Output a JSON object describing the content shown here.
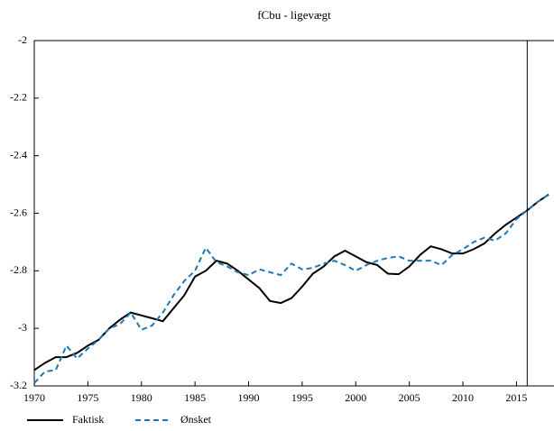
{
  "chart_data": {
    "type": "line",
    "title": "fCbu - ligevægt",
    "x": [
      1970,
      1971,
      1972,
      1973,
      1974,
      1975,
      1976,
      1977,
      1978,
      1979,
      1980,
      1981,
      1982,
      1983,
      1984,
      1985,
      1986,
      1987,
      1988,
      1989,
      1990,
      1991,
      1992,
      1993,
      1994,
      1995,
      1996,
      1997,
      1998,
      1999,
      2000,
      2001,
      2002,
      2003,
      2004,
      2005,
      2006,
      2007,
      2008,
      2009,
      2010,
      2011,
      2012,
      2013,
      2014,
      2015,
      2016,
      2017,
      2018
    ],
    "series": [
      {
        "name": "Faktisk",
        "color": "#000000",
        "dash": false,
        "values": [
          -3.145,
          -3.12,
          -3.1,
          -3.1,
          -3.085,
          -3.06,
          -3.04,
          -3.0,
          -2.97,
          -2.945,
          -2.955,
          -2.965,
          -2.975,
          -2.93,
          -2.885,
          -2.82,
          -2.8,
          -2.765,
          -2.775,
          -2.8,
          -2.83,
          -2.86,
          -2.905,
          -2.912,
          -2.895,
          -2.855,
          -2.81,
          -2.785,
          -2.75,
          -2.73,
          -2.75,
          -2.77,
          -2.78,
          -2.81,
          -2.812,
          -2.785,
          -2.745,
          -2.715,
          -2.725,
          -2.74,
          -2.74,
          -2.725,
          -2.705,
          -2.67,
          -2.64,
          -2.615,
          -2.59,
          -2.56,
          -2.535
        ]
      },
      {
        "name": "Ønsket",
        "color": "#1f77b4",
        "dash": true,
        "values": [
          -3.19,
          -3.15,
          -3.145,
          -3.06,
          -3.105,
          -3.07,
          -3.04,
          -3.0,
          -2.985,
          -2.945,
          -3.005,
          -2.99,
          -2.945,
          -2.885,
          -2.835,
          -2.8,
          -2.72,
          -2.77,
          -2.785,
          -2.805,
          -2.815,
          -2.795,
          -2.805,
          -2.815,
          -2.775,
          -2.795,
          -2.79,
          -2.775,
          -2.765,
          -2.78,
          -2.8,
          -2.78,
          -2.765,
          -2.755,
          -2.75,
          -2.765,
          -2.765,
          -2.765,
          -2.78,
          -2.745,
          -2.725,
          -2.7,
          -2.685,
          -2.695,
          -2.67,
          -2.62,
          -2.59,
          -2.56,
          -2.535
        ]
      }
    ],
    "xlim": [
      1970,
      2018.5
    ],
    "xticks": [
      1970,
      1975,
      1980,
      1985,
      1990,
      1995,
      2000,
      2005,
      2010,
      2015
    ],
    "ylim": [
      -3.2,
      -2
    ],
    "yticks": [
      -3.2,
      -3,
      -2.8,
      -2.6,
      -2.4,
      -2.2,
      -2
    ],
    "vline": 2016,
    "legend": "bottom"
  }
}
